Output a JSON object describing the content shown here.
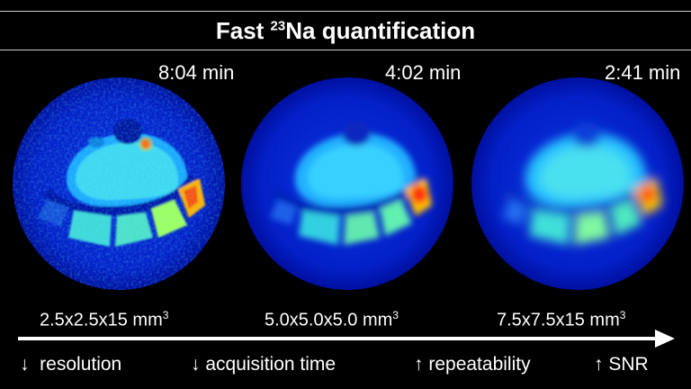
{
  "title": {
    "prefix": "Fast ",
    "isotope_mass": "23",
    "suffix": "Na quantification"
  },
  "panels": [
    {
      "time": "8:04 min",
      "resolution_main": "2.5x2.5x15 mm",
      "resolution_exp": "3"
    },
    {
      "time": "4:02 min",
      "resolution_main": "5.0x5.0x5.0 mm",
      "resolution_exp": "3"
    },
    {
      "time": "2:41 min",
      "resolution_main": "7.5x7.5x15 mm",
      "resolution_exp": "3"
    }
  ],
  "tradeoffs": [
    {
      "arrow": "↓",
      "label": "resolution"
    },
    {
      "arrow": "↓",
      "label": "acquisition time"
    },
    {
      "arrow": "↑",
      "label": "repeatability"
    },
    {
      "arrow": "↑",
      "label": "SNR"
    }
  ],
  "colors": {
    "background": "#000000",
    "text": "#ffffff",
    "colormap": "jet"
  }
}
